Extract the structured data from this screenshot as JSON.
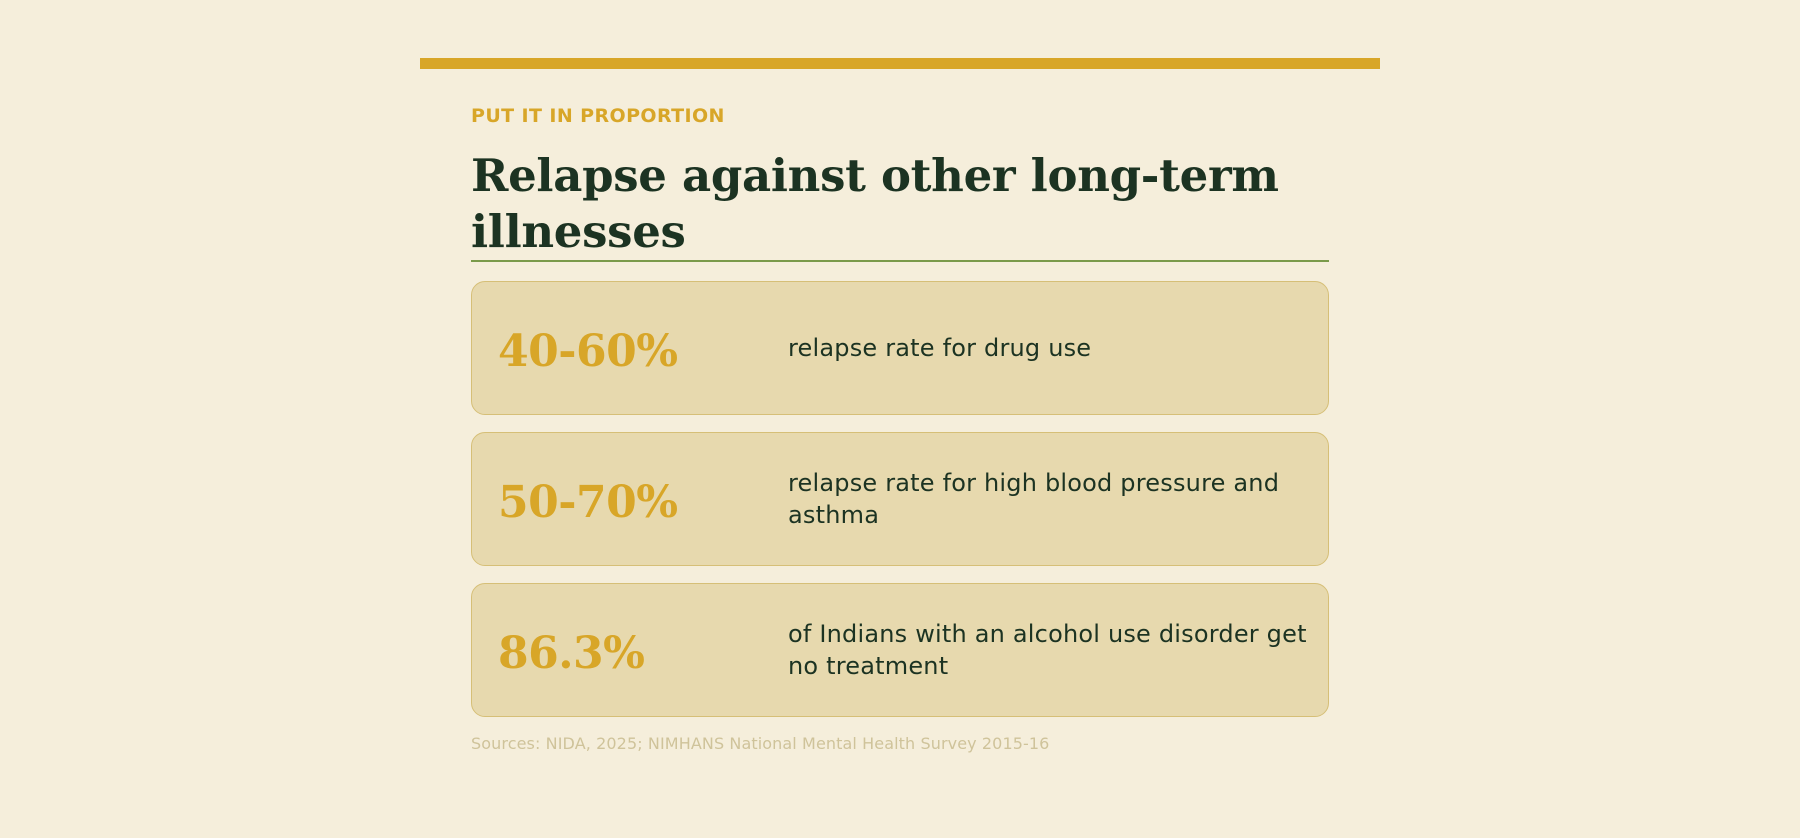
{
  "header": {
    "eyebrow": "PUT IT IN PROPORTION",
    "title": "Relapse against other long-term illnesses"
  },
  "stats": [
    {
      "value": "40-60%",
      "description": "relapse rate for drug use"
    },
    {
      "value": "50-70%",
      "description": "relapse rate for high blood pressure and asthma"
    },
    {
      "value": "86.3%",
      "description": "of Indians with an alcohol use disorder get no treatment"
    }
  ],
  "footer": {
    "sources": "Sources: NIDA, 2025; NIMHANS National Mental Health Survey 2015-16"
  },
  "colors": {
    "background": "#f5eedb",
    "accent": "#d8a628",
    "title": "#1c3322",
    "rule": "#7a9a4a",
    "card": "#e7d9ae"
  }
}
